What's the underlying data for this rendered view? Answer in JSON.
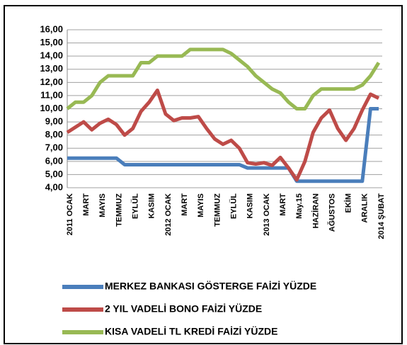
{
  "chart_data": {
    "type": "line",
    "categories": [
      "2011 OCAK",
      null,
      "MART",
      null,
      "MAYIS",
      null,
      "TEMMUZ",
      null,
      "EYLÜL",
      null,
      "KASIM",
      null,
      "2012 OCAK",
      null,
      "MART",
      null,
      "MAYIS",
      null,
      "TEMMUZ",
      null,
      "EYLÜL",
      null,
      "KASIM",
      null,
      "2013 OCAK",
      null,
      "MART",
      null,
      "May.15",
      null,
      "HAZİRAN",
      null,
      "AĞUSTOS",
      null,
      "EKİM",
      null,
      "ARALIK",
      null,
      "2014 ŞUBAT"
    ],
    "series": [
      {
        "name": "MERKEZ BANKASI GÖSTERGE FAİZİ YÜZDE",
        "color": "#4a7ebb",
        "values": [
          6.25,
          6.25,
          6.25,
          6.25,
          6.25,
          6.25,
          6.25,
          5.75,
          5.75,
          5.75,
          5.75,
          5.75,
          5.75,
          5.75,
          5.75,
          5.75,
          5.75,
          5.75,
          5.75,
          5.75,
          5.75,
          5.75,
          5.5,
          5.5,
          5.5,
          5.5,
          5.5,
          5.5,
          4.5,
          4.5,
          4.5,
          4.5,
          4.5,
          4.5,
          4.5,
          4.5,
          4.5,
          10,
          10
        ]
      },
      {
        "name": "2 YIL VADELİ BONO FAİZİ YÜZDE",
        "color": "#be4b48",
        "values": [
          8.2,
          8.6,
          9.0,
          8.4,
          8.9,
          9.2,
          8.8,
          8.0,
          8.5,
          9.8,
          10.5,
          11.4,
          9.6,
          9.1,
          9.3,
          9.3,
          9.4,
          8.5,
          7.7,
          7.3,
          7.6,
          7.0,
          5.9,
          5.8,
          5.9,
          5.7,
          6.3,
          5.5,
          4.6,
          6.0,
          8.2,
          9.3,
          9.9,
          8.5,
          7.6,
          8.5,
          9.9,
          11.1,
          10.8
        ]
      },
      {
        "name": "KISA VADELİ TL KREDİ FAİZİ YÜZDE",
        "color": "#98b954",
        "values": [
          10,
          10.5,
          10.5,
          11,
          12,
          12.5,
          12.5,
          12.5,
          12.5,
          13.5,
          13.5,
          14,
          14,
          14,
          14,
          14.5,
          14.5,
          14.5,
          14.5,
          14.5,
          14.2,
          13.7,
          13.2,
          12.5,
          12,
          11.5,
          11.2,
          10.5,
          10,
          10,
          11,
          11.5,
          11.5,
          11.5,
          11.5,
          11.5,
          11.8,
          12.5,
          13.5
        ]
      }
    ],
    "ylim": [
      4,
      16
    ],
    "yticks": [
      {
        "value": 4,
        "label": "4,00"
      },
      {
        "value": 5,
        "label": "5,00"
      },
      {
        "value": 6,
        "label": "6,00"
      },
      {
        "value": 7,
        "label": "7,00"
      },
      {
        "value": 8,
        "label": "8,00"
      },
      {
        "value": 9,
        "label": "9,00"
      },
      {
        "value": 10,
        "label": "10,00"
      },
      {
        "value": 11,
        "label": "11,00"
      },
      {
        "value": 12,
        "label": "12,00"
      },
      {
        "value": 13,
        "label": "13,00"
      },
      {
        "value": 14,
        "label": "14,00"
      },
      {
        "value": 15,
        "label": "15,00"
      },
      {
        "value": 16,
        "label": "16,00"
      }
    ],
    "grid": true,
    "legend": "bottom"
  }
}
